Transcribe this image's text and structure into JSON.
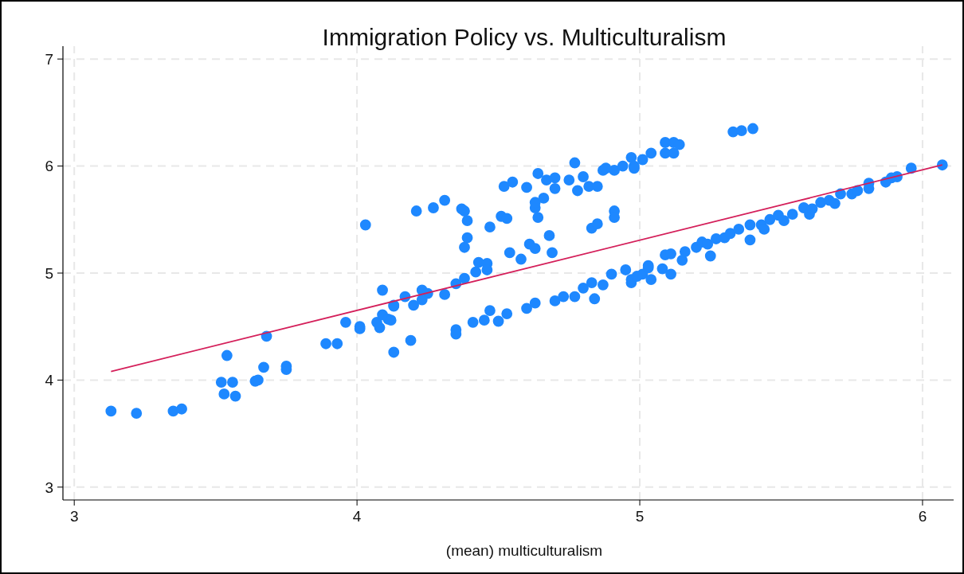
{
  "chart_data": {
    "type": "scatter",
    "title": "Immigration Policy vs. Multiculturalism",
    "xlabel": "(mean) multiculturalism",
    "xlim": [
      2.96,
      6.11
    ],
    "ylim": [
      2.88,
      7.12
    ],
    "xticks": [
      3,
      4,
      5,
      6
    ],
    "yticks": [
      3,
      4,
      5,
      6,
      7
    ],
    "grid": true,
    "series": [
      {
        "marker": "circle",
        "color": "#1e88ff",
        "x": [
          3.13,
          3.22,
          3.35,
          3.38,
          3.52,
          3.53,
          3.56,
          3.57,
          3.54,
          3.64,
          3.65,
          3.67,
          3.68,
          3.75,
          3.75,
          3.89,
          3.93,
          3.96,
          4.01,
          4.01,
          4.03,
          4.07,
          4.08,
          4.09,
          4.09,
          4.11,
          4.12,
          4.13,
          4.13,
          4.19,
          4.13,
          4.17,
          4.2,
          4.23,
          4.25,
          4.23,
          4.31,
          4.35,
          4.38,
          4.42,
          4.43,
          4.46,
          4.46,
          4.21,
          4.27,
          4.31,
          4.37,
          4.38,
          4.39,
          4.39,
          4.38,
          4.47,
          4.51,
          4.53,
          4.54,
          4.58,
          4.61,
          4.63,
          4.68,
          4.69,
          4.64,
          4.63,
          4.63,
          4.66,
          4.67,
          4.7,
          4.7,
          4.6,
          4.52,
          4.55,
          4.64,
          4.75,
          4.78,
          4.82,
          4.85,
          4.8,
          4.87,
          4.91,
          4.98,
          4.83,
          4.85,
          4.91,
          4.91,
          4.35,
          4.35,
          4.41,
          4.45,
          4.47,
          4.5,
          4.53,
          4.6,
          4.63,
          4.7,
          4.73,
          4.77,
          4.8,
          4.83,
          4.84,
          4.87,
          4.9,
          4.95,
          4.97,
          5.01,
          5.03,
          4.97,
          4.99,
          5.03,
          5.04,
          5.08,
          5.09,
          5.11,
          5.11,
          5.15,
          5.16,
          5.2,
          5.22,
          5.24,
          5.25,
          5.27,
          5.3,
          5.32,
          5.35,
          5.39,
          5.39,
          5.43,
          5.44,
          5.46,
          5.49,
          5.51,
          5.54,
          5.58,
          5.6,
          5.61,
          5.64,
          5.67,
          5.69,
          5.71,
          5.75,
          5.77,
          5.81,
          5.81,
          5.87,
          5.89,
          5.91,
          5.96,
          6.07,
          4.77,
          4.88,
          4.94,
          4.97,
          4.98,
          5.01,
          5.04,
          5.09,
          5.09,
          5.12,
          5.14,
          5.12,
          5.33,
          5.36,
          5.4
        ],
        "values": [
          3.71,
          3.69,
          3.71,
          3.73,
          3.98,
          3.87,
          3.98,
          3.85,
          4.23,
          3.99,
          4.0,
          4.12,
          4.41,
          4.13,
          4.1,
          4.34,
          4.34,
          4.54,
          4.5,
          4.48,
          5.45,
          4.54,
          4.49,
          4.84,
          4.61,
          4.57,
          4.56,
          4.69,
          4.26,
          4.37,
          4.7,
          4.78,
          4.7,
          4.84,
          4.81,
          4.75,
          4.8,
          4.9,
          4.95,
          5.01,
          5.1,
          5.09,
          5.03,
          5.58,
          5.61,
          5.68,
          5.6,
          5.58,
          5.49,
          5.33,
          5.24,
          5.43,
          5.53,
          5.51,
          5.19,
          5.13,
          5.27,
          5.23,
          5.35,
          5.19,
          5.52,
          5.61,
          5.66,
          5.7,
          5.87,
          5.79,
          5.89,
          5.8,
          5.81,
          5.85,
          5.93,
          5.87,
          5.77,
          5.81,
          5.81,
          5.9,
          5.96,
          5.96,
          5.98,
          5.42,
          5.46,
          5.58,
          5.52,
          4.47,
          4.43,
          4.54,
          4.56,
          4.65,
          4.55,
          4.62,
          4.67,
          4.72,
          4.74,
          4.78,
          4.78,
          4.86,
          4.91,
          4.76,
          4.89,
          4.99,
          5.03,
          4.94,
          4.99,
          5.05,
          4.91,
          4.97,
          5.07,
          4.94,
          5.04,
          5.17,
          5.18,
          4.99,
          5.12,
          5.2,
          5.24,
          5.29,
          5.27,
          5.16,
          5.32,
          5.33,
          5.37,
          5.41,
          5.45,
          5.31,
          5.45,
          5.41,
          5.5,
          5.54,
          5.49,
          5.55,
          5.61,
          5.55,
          5.6,
          5.66,
          5.68,
          5.65,
          5.74,
          5.74,
          5.77,
          5.84,
          5.79,
          5.85,
          5.89,
          5.9,
          5.98,
          6.01,
          6.03,
          5.98,
          6.0,
          6.08,
          6.0,
          6.06,
          6.12,
          6.22,
          6.12,
          6.22,
          6.2,
          6.12,
          6.32,
          6.33,
          6.35
        ]
      },
      {
        "type": "line",
        "color": "#d41f5a",
        "x": [
          3.13,
          6.07
        ],
        "values": [
          4.08,
          6.01
        ]
      }
    ]
  }
}
